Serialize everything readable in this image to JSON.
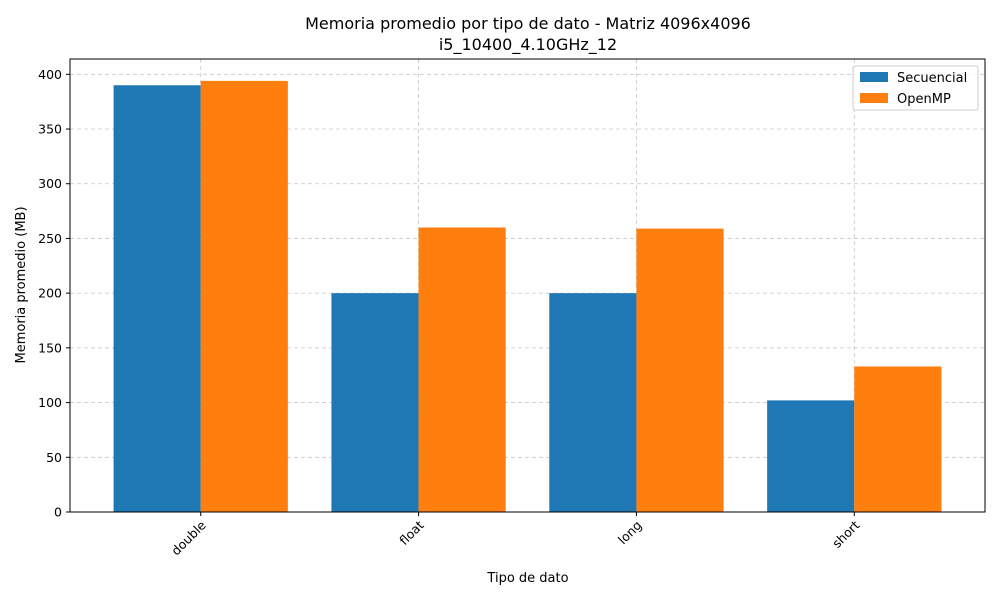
{
  "chart_data": {
    "type": "bar",
    "title": "Memoria promedio por tipo de dato - Matriz 4096x4096",
    "subtitle": "i5_10400_4.10GHz_12",
    "xlabel": "Tipo de dato",
    "ylabel": "Memoria promedio (MB)",
    "categories": [
      "double",
      "float",
      "long",
      "short"
    ],
    "series": [
      {
        "name": "Secuencial",
        "color": "#1f77b4",
        "values": [
          390,
          200,
          200,
          102
        ]
      },
      {
        "name": "OpenMP",
        "color": "#ff7f0e",
        "values": [
          394,
          260,
          259,
          133
        ]
      }
    ],
    "ylim": [
      0,
      414
    ],
    "yticks": [
      0,
      50,
      100,
      150,
      200,
      250,
      300,
      350,
      400
    ],
    "grid": true,
    "legend_position": "top-right",
    "xtick_rotation": 45
  }
}
